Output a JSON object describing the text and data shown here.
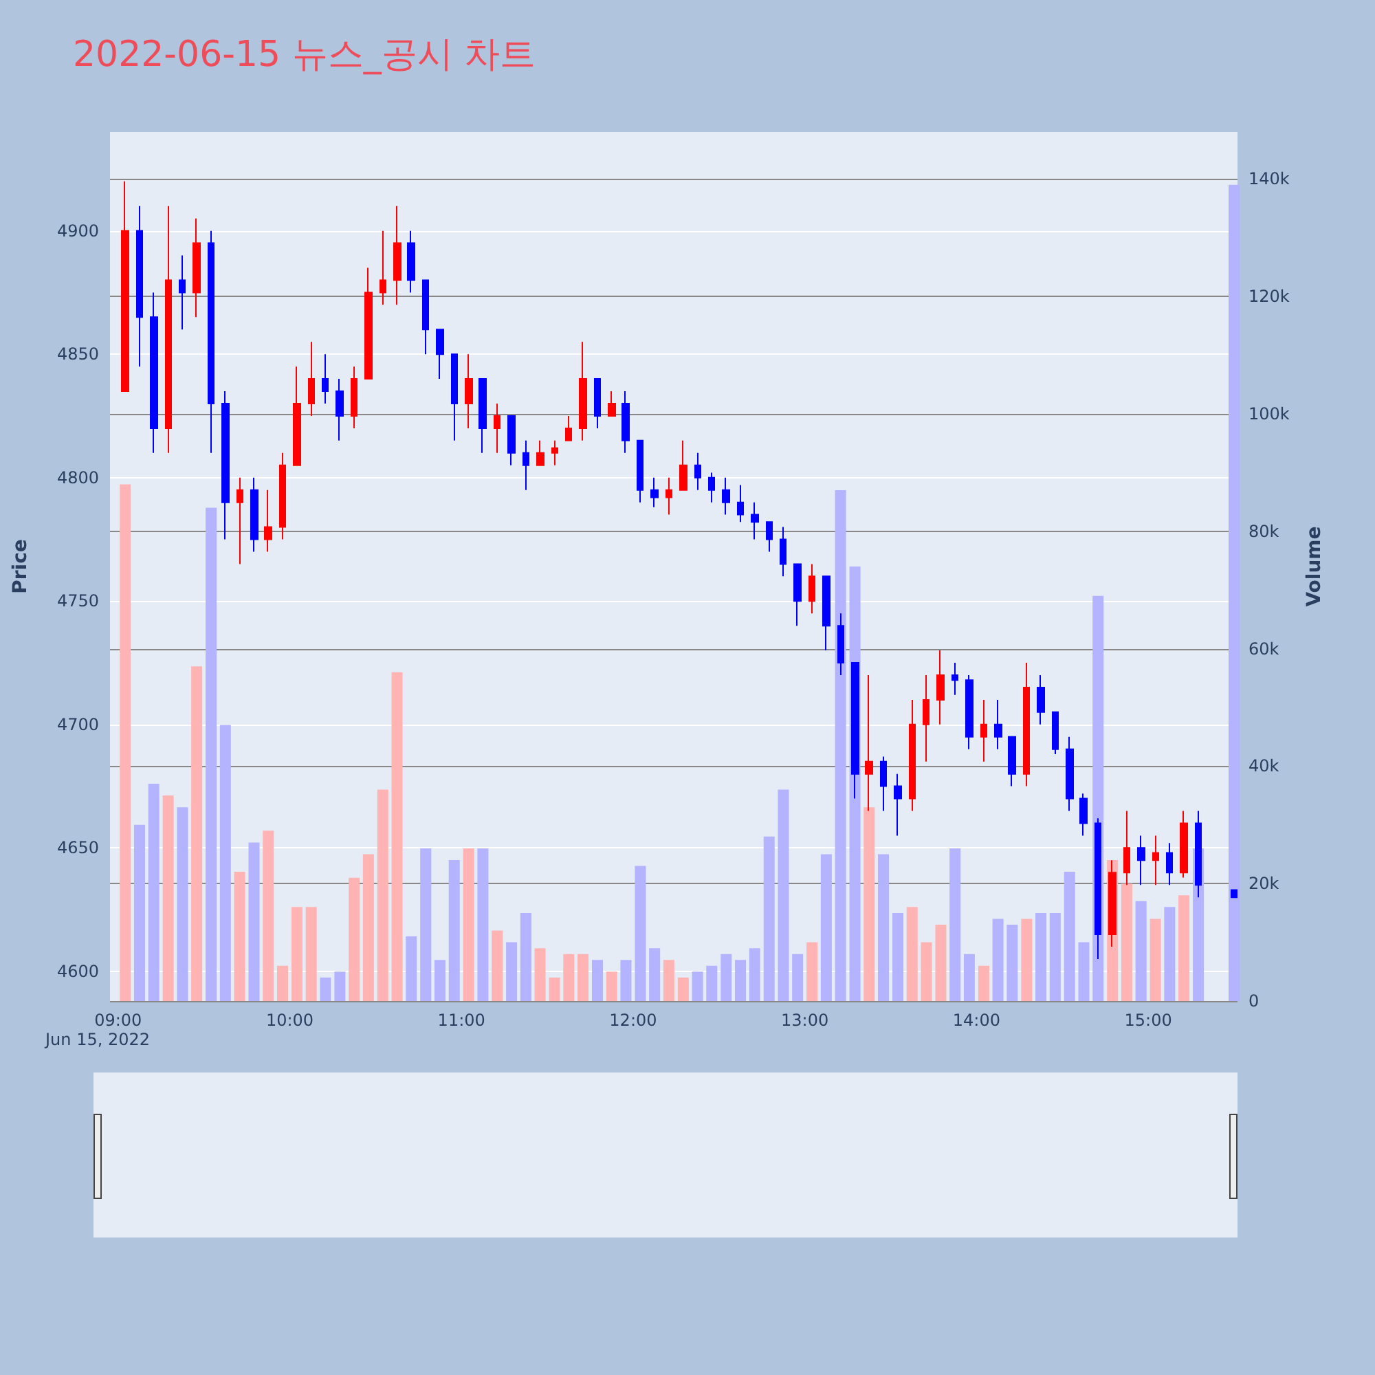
{
  "chart_data": {
    "type": "candlestick",
    "title": "2022-06-15 뉴스_공시 차트",
    "ylabel": "Price",
    "y2label": "Volume",
    "annotations": [
      "Jun 15, 2022"
    ],
    "grid": "y",
    "xlim": [
      8.953,
      15.52
    ],
    "xticks": [
      {
        "value": 9,
        "label": "09:00"
      },
      {
        "value": 10,
        "label": "10:00"
      },
      {
        "value": 11,
        "label": "11:00"
      },
      {
        "value": 12,
        "label": "12:00"
      },
      {
        "value": 13,
        "label": "13:00"
      },
      {
        "value": 14,
        "label": "14:00"
      },
      {
        "value": 15,
        "label": "15:00"
      }
    ],
    "ylim": [
      4588,
      4940
    ],
    "yticks": [
      4600,
      4650,
      4700,
      4750,
      4800,
      4850,
      4900
    ],
    "y2lim": [
      0,
      148000
    ],
    "y2ticks": [
      {
        "value": 0,
        "label": "0"
      },
      {
        "value": 20000,
        "label": "20k"
      },
      {
        "value": 40000,
        "label": "40k"
      },
      {
        "value": 60000,
        "label": "60k"
      },
      {
        "value": 80000,
        "label": "80k"
      },
      {
        "value": 100000,
        "label": "100k"
      },
      {
        "value": 120000,
        "label": "120k"
      },
      {
        "value": 140000,
        "label": "140k"
      }
    ],
    "series": [
      {
        "x": [
          9.042,
          9.125,
          9.208,
          9.292,
          9.375,
          9.458,
          9.542,
          9.625,
          9.708,
          9.792,
          9.875,
          9.958,
          10.042,
          10.125,
          10.208,
          10.292,
          10.375,
          10.458,
          10.542,
          10.625,
          10.708,
          10.792,
          10.875,
          10.958,
          11.042,
          11.125,
          11.208,
          11.292,
          11.375,
          11.458,
          11.542,
          11.625,
          11.708,
          11.792,
          11.875,
          11.958,
          12.042,
          12.125,
          12.208,
          12.292,
          12.375,
          12.458,
          12.542,
          12.625,
          12.708,
          12.792,
          12.875,
          12.958,
          13.042,
          13.125,
          13.208,
          13.292,
          13.375,
          13.458,
          13.542,
          13.625,
          13.708,
          13.792,
          13.875,
          13.958,
          14.042,
          14.125,
          14.208,
          14.292,
          14.375,
          14.458,
          14.542,
          14.625,
          14.708,
          14.792,
          14.875,
          14.958,
          15.042,
          15.125,
          15.208,
          15.292,
          15.5
        ],
        "ohlc": [
          [
            4835,
            4920,
            4835,
            4900
          ],
          [
            4900,
            4910,
            4845,
            4865
          ],
          [
            4865,
            4875,
            4810,
            4820
          ],
          [
            4820,
            4910,
            4810,
            4880
          ],
          [
            4880,
            4890,
            4860,
            4875
          ],
          [
            4875,
            4905,
            4865,
            4895
          ],
          [
            4895,
            4900,
            4810,
            4830
          ],
          [
            4830,
            4835,
            4775,
            4790
          ],
          [
            4790,
            4800,
            4765,
            4795
          ],
          [
            4795,
            4800,
            4770,
            4775
          ],
          [
            4775,
            4795,
            4770,
            4780
          ],
          [
            4780,
            4810,
            4775,
            4805
          ],
          [
            4805,
            4845,
            4805,
            4830
          ],
          [
            4830,
            4855,
            4825,
            4840
          ],
          [
            4840,
            4850,
            4830,
            4835
          ],
          [
            4835,
            4840,
            4815,
            4825
          ],
          [
            4825,
            4845,
            4820,
            4840
          ],
          [
            4840,
            4885,
            4840,
            4875
          ],
          [
            4875,
            4900,
            4870,
            4880
          ],
          [
            4880,
            4910,
            4870,
            4895
          ],
          [
            4895,
            4900,
            4875,
            4880
          ],
          [
            4880,
            4880,
            4850,
            4860
          ],
          [
            4860,
            4860,
            4840,
            4850
          ],
          [
            4850,
            4850,
            4815,
            4830
          ],
          [
            4830,
            4850,
            4820,
            4840
          ],
          [
            4840,
            4840,
            4810,
            4820
          ],
          [
            4820,
            4830,
            4810,
            4825
          ],
          [
            4825,
            4825,
            4805,
            4810
          ],
          [
            4810,
            4815,
            4795,
            4805
          ],
          [
            4805,
            4815,
            4805,
            4810
          ],
          [
            4810,
            4815,
            4805,
            4812
          ],
          [
            4815,
            4825,
            4815,
            4820
          ],
          [
            4820,
            4855,
            4815,
            4840
          ],
          [
            4840,
            4840,
            4820,
            4825
          ],
          [
            4825,
            4835,
            4825,
            4830
          ],
          [
            4830,
            4835,
            4810,
            4815
          ],
          [
            4815,
            4815,
            4790,
            4795
          ],
          [
            4795,
            4800,
            4788,
            4792
          ],
          [
            4792,
            4800,
            4785,
            4795
          ],
          [
            4795,
            4815,
            4795,
            4805
          ],
          [
            4805,
            4810,
            4795,
            4800
          ],
          [
            4800,
            4802,
            4790,
            4795
          ],
          [
            4795,
            4800,
            4785,
            4790
          ],
          [
            4790,
            4797,
            4782,
            4785
          ],
          [
            4785,
            4790,
            4775,
            4782
          ],
          [
            4782,
            4782,
            4770,
            4775
          ],
          [
            4775,
            4780,
            4760,
            4765
          ],
          [
            4765,
            4765,
            4740,
            4750
          ],
          [
            4750,
            4765,
            4745,
            4760
          ],
          [
            4760,
            4760,
            4730,
            4740
          ],
          [
            4740,
            4745,
            4720,
            4725
          ],
          [
            4725,
            4725,
            4670,
            4680
          ],
          [
            4680,
            4720,
            4665,
            4685
          ],
          [
            4685,
            4687,
            4665,
            4675
          ],
          [
            4675,
            4680,
            4655,
            4670
          ],
          [
            4670,
            4710,
            4665,
            4700
          ],
          [
            4700,
            4720,
            4685,
            4710
          ],
          [
            4710,
            4730,
            4700,
            4720
          ],
          [
            4720,
            4725,
            4712,
            4718
          ],
          [
            4718,
            4720,
            4690,
            4695
          ],
          [
            4695,
            4710,
            4685,
            4700
          ],
          [
            4700,
            4710,
            4690,
            4695
          ],
          [
            4695,
            4695,
            4675,
            4680
          ],
          [
            4680,
            4725,
            4675,
            4715
          ],
          [
            4715,
            4720,
            4700,
            4705
          ],
          [
            4705,
            4705,
            4688,
            4690
          ],
          [
            4690,
            4695,
            4665,
            4670
          ],
          [
            4670,
            4672,
            4655,
            4660
          ],
          [
            4660,
            4662,
            4605,
            4615
          ],
          [
            4615,
            4645,
            4610,
            4640
          ],
          [
            4640,
            4665,
            4635,
            4650
          ],
          [
            4650,
            4655,
            4635,
            4645
          ],
          [
            4645,
            4655,
            4635,
            4648
          ],
          [
            4648,
            4652,
            4635,
            4640
          ],
          [
            4640,
            4665,
            4638,
            4660
          ],
          [
            4660,
            4665,
            4630,
            4635
          ],
          [
            4633,
            4633,
            4630,
            4630
          ]
        ],
        "colors": [
          "#ff0000",
          "#0000ff",
          "#0000ff",
          "#ff0000",
          "#0000ff",
          "#ff0000",
          "#0000ff",
          "#0000ff",
          "#ff0000",
          "#0000ff",
          "#ff0000",
          "#ff0000",
          "#ff0000",
          "#ff0000",
          "#0000ff",
          "#0000ff",
          "#ff0000",
          "#ff0000",
          "#ff0000",
          "#ff0000",
          "#0000ff",
          "#0000ff",
          "#0000ff",
          "#0000ff",
          "#ff0000",
          "#0000ff",
          "#ff0000",
          "#0000ff",
          "#0000ff",
          "#ff0000",
          "#ff0000",
          "#ff0000",
          "#ff0000",
          "#0000ff",
          "#ff0000",
          "#0000ff",
          "#0000ff",
          "#0000ff",
          "#ff0000",
          "#ff0000",
          "#0000ff",
          "#0000ff",
          "#0000ff",
          "#0000ff",
          "#0000ff",
          "#0000ff",
          "#0000ff",
          "#0000ff",
          "#ff0000",
          "#0000ff",
          "#0000ff",
          "#0000ff",
          "#ff0000",
          "#0000ff",
          "#0000ff",
          "#ff0000",
          "#ff0000",
          "#ff0000",
          "#0000ff",
          "#0000ff",
          "#ff0000",
          "#0000ff",
          "#0000ff",
          "#ff0000",
          "#0000ff",
          "#0000ff",
          "#0000ff",
          "#0000ff",
          "#0000ff",
          "#ff0000",
          "#ff0000",
          "#0000ff",
          "#ff0000",
          "#0000ff",
          "#ff0000",
          "#0000ff",
          "#0000ff"
        ]
      },
      {
        "type": "bar",
        "axis": "y2",
        "x": [
          9.042,
          9.125,
          9.208,
          9.292,
          9.375,
          9.458,
          9.542,
          9.625,
          9.708,
          9.792,
          9.875,
          9.958,
          10.042,
          10.125,
          10.208,
          10.292,
          10.375,
          10.458,
          10.542,
          10.625,
          10.708,
          10.792,
          10.875,
          10.958,
          11.042,
          11.125,
          11.208,
          11.292,
          11.375,
          11.458,
          11.542,
          11.625,
          11.708,
          11.792,
          11.875,
          11.958,
          12.042,
          12.125,
          12.208,
          12.292,
          12.375,
          12.458,
          12.542,
          12.625,
          12.708,
          12.792,
          12.875,
          12.958,
          13.042,
          13.125,
          13.208,
          13.292,
          13.375,
          13.458,
          13.542,
          13.625,
          13.708,
          13.792,
          13.875,
          13.958,
          14.042,
          14.125,
          14.208,
          14.292,
          14.375,
          14.458,
          14.542,
          14.625,
          14.708,
          14.792,
          14.875,
          14.958,
          15.042,
          15.125,
          15.208,
          15.292,
          15.5
        ],
        "values": [
          88000,
          30000,
          37000,
          35000,
          33000,
          57000,
          84000,
          47000,
          22000,
          27000,
          29000,
          6000,
          16000,
          16000,
          4000,
          5000,
          21000,
          25000,
          36000,
          56000,
          11000,
          26000,
          7000,
          24000,
          26000,
          26000,
          12000,
          10000,
          15000,
          9000,
          4000,
          8000,
          8000,
          7000,
          5000,
          7000,
          23000,
          9000,
          7000,
          4000,
          5000,
          6000,
          8000,
          7000,
          9000,
          28000,
          36000,
          8000,
          10000,
          25000,
          87000,
          74000,
          33000,
          25000,
          15000,
          16000,
          10000,
          13000,
          26000,
          8000,
          6000,
          14000,
          13000,
          14000,
          15000,
          15000,
          22000,
          10000,
          69000,
          24000,
          20000,
          17000,
          14000,
          16000,
          18000,
          26000,
          139000
        ],
        "colors": [
          "#ffb3b3",
          "#b3b3ff",
          "#b3b3ff",
          "#ffb3b3",
          "#b3b3ff",
          "#ffb3b3",
          "#b3b3ff",
          "#b3b3ff",
          "#ffb3b3",
          "#b3b3ff",
          "#ffb3b3",
          "#ffb3b3",
          "#ffb3b3",
          "#ffb3b3",
          "#b3b3ff",
          "#b3b3ff",
          "#ffb3b3",
          "#ffb3b3",
          "#ffb3b3",
          "#ffb3b3",
          "#b3b3ff",
          "#b3b3ff",
          "#b3b3ff",
          "#b3b3ff",
          "#ffb3b3",
          "#b3b3ff",
          "#ffb3b3",
          "#b3b3ff",
          "#b3b3ff",
          "#ffb3b3",
          "#ffb3b3",
          "#ffb3b3",
          "#ffb3b3",
          "#b3b3ff",
          "#ffb3b3",
          "#b3b3ff",
          "#b3b3ff",
          "#b3b3ff",
          "#ffb3b3",
          "#ffb3b3",
          "#b3b3ff",
          "#b3b3ff",
          "#b3b3ff",
          "#b3b3ff",
          "#b3b3ff",
          "#b3b3ff",
          "#b3b3ff",
          "#b3b3ff",
          "#ffb3b3",
          "#b3b3ff",
          "#b3b3ff",
          "#b3b3ff",
          "#ffb3b3",
          "#b3b3ff",
          "#b3b3ff",
          "#ffb3b3",
          "#ffb3b3",
          "#ffb3b3",
          "#b3b3ff",
          "#b3b3ff",
          "#ffb3b3",
          "#b3b3ff",
          "#b3b3ff",
          "#ffb3b3",
          "#b3b3ff",
          "#b3b3ff",
          "#b3b3ff",
          "#b3b3ff",
          "#b3b3ff",
          "#ffb3b3",
          "#ffb3b3",
          "#b3b3ff",
          "#ffb3b3",
          "#b3b3ff",
          "#ffb3b3",
          "#b3b3ff",
          "#b3b3ff"
        ]
      }
    ]
  }
}
